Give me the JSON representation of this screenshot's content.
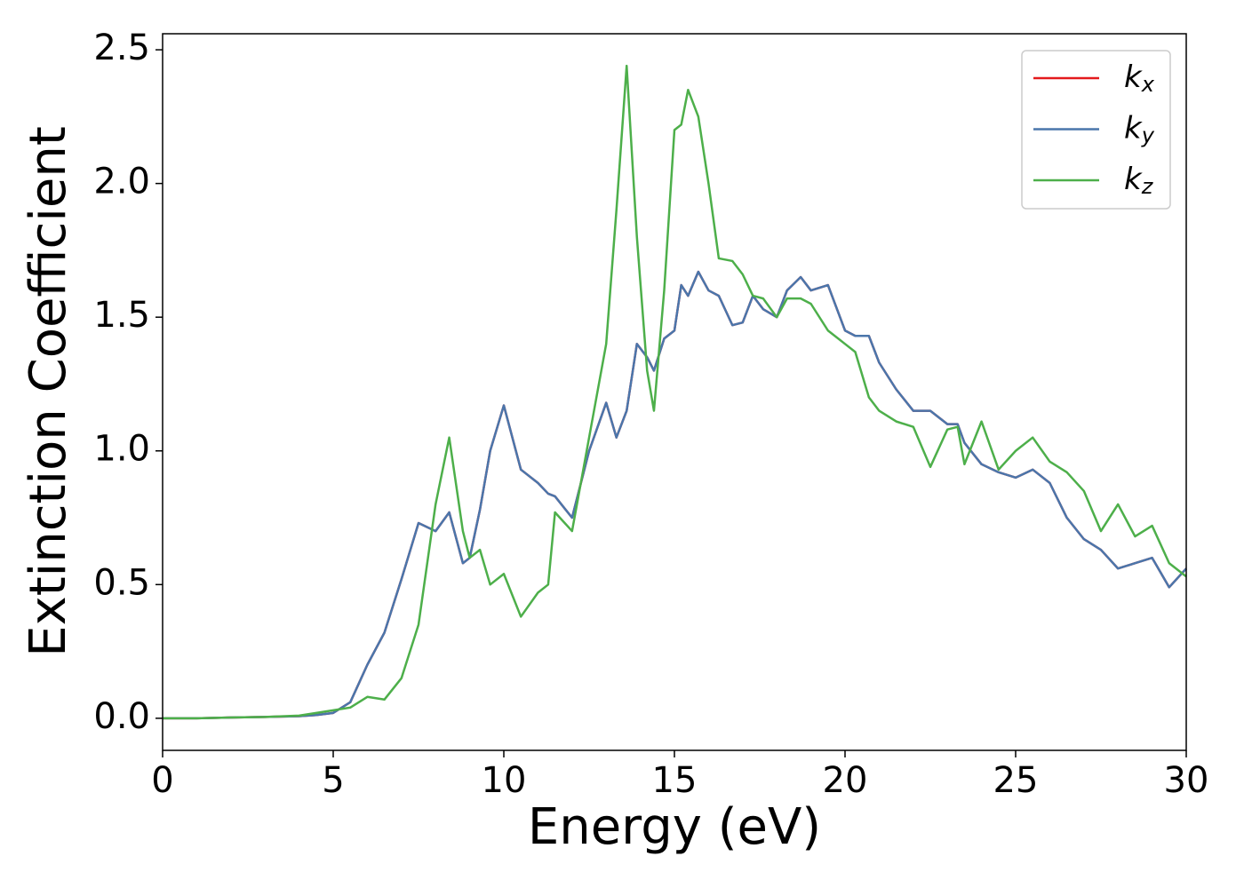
{
  "chart_data": {
    "type": "line",
    "xlabel": "Energy (eV)",
    "ylabel": "Extinction Coefficient",
    "x": [
      0,
      1,
      2,
      3,
      4,
      4.5,
      5,
      5.5,
      6,
      6.5,
      7,
      7.5,
      8,
      8.4,
      8.8,
      9,
      9.3,
      9.6,
      10,
      10.5,
      11,
      11.3,
      11.5,
      12,
      12.5,
      13,
      13.3,
      13.6,
      13.9,
      14.2,
      14.4,
      14.7,
      15,
      15.2,
      15.4,
      15.7,
      16,
      16.3,
      16.7,
      17,
      17.3,
      17.6,
      18,
      18.3,
      18.7,
      19,
      19.5,
      20,
      20.3,
      20.7,
      21,
      21.5,
      22,
      22.5,
      23,
      23.3,
      23.5,
      24,
      24.5,
      25,
      25.5,
      26,
      26.5,
      27,
      27.5,
      28,
      28.5,
      29,
      29.5,
      30
    ],
    "series": [
      {
        "name": "kx",
        "color": "#e41a1c",
        "values": [
          0,
          0,
          0.003,
          0.005,
          0.008,
          0.012,
          0.02,
          0.06,
          0.2,
          0.32,
          0.52,
          0.73,
          0.7,
          0.77,
          0.58,
          0.6,
          0.78,
          1.0,
          1.17,
          0.93,
          0.88,
          0.84,
          0.83,
          0.75,
          1.0,
          1.18,
          1.05,
          1.15,
          1.4,
          1.35,
          1.3,
          1.42,
          1.45,
          1.62,
          1.58,
          1.67,
          1.6,
          1.58,
          1.47,
          1.48,
          1.58,
          1.53,
          1.5,
          1.6,
          1.65,
          1.6,
          1.62,
          1.45,
          1.43,
          1.43,
          1.33,
          1.23,
          1.15,
          1.15,
          1.1,
          1.1,
          1.03,
          0.95,
          0.92,
          0.9,
          0.93,
          0.88,
          0.75,
          0.67,
          0.63,
          0.56,
          0.58,
          0.6,
          0.49,
          0.56
        ]
      },
      {
        "name": "ky",
        "color": "#4a76ab",
        "values": [
          0,
          0,
          0.003,
          0.005,
          0.008,
          0.012,
          0.02,
          0.06,
          0.2,
          0.32,
          0.52,
          0.73,
          0.7,
          0.77,
          0.58,
          0.6,
          0.78,
          1.0,
          1.17,
          0.93,
          0.88,
          0.84,
          0.83,
          0.75,
          1.0,
          1.18,
          1.05,
          1.15,
          1.4,
          1.35,
          1.3,
          1.42,
          1.45,
          1.62,
          1.58,
          1.67,
          1.6,
          1.58,
          1.47,
          1.48,
          1.58,
          1.53,
          1.5,
          1.6,
          1.65,
          1.6,
          1.62,
          1.45,
          1.43,
          1.43,
          1.33,
          1.23,
          1.15,
          1.15,
          1.1,
          1.1,
          1.03,
          0.95,
          0.92,
          0.9,
          0.93,
          0.88,
          0.75,
          0.67,
          0.63,
          0.56,
          0.58,
          0.6,
          0.49,
          0.56
        ]
      },
      {
        "name": "kz",
        "color": "#4daf4a",
        "values": [
          0,
          0,
          0.003,
          0.005,
          0.01,
          0.02,
          0.03,
          0.04,
          0.08,
          0.07,
          0.15,
          0.35,
          0.8,
          1.05,
          0.7,
          0.6,
          0.63,
          0.5,
          0.54,
          0.38,
          0.47,
          0.5,
          0.77,
          0.7,
          1.05,
          1.4,
          1.9,
          2.44,
          1.8,
          1.3,
          1.15,
          1.6,
          2.2,
          2.22,
          2.35,
          2.25,
          2.0,
          1.72,
          1.71,
          1.66,
          1.58,
          1.57,
          1.5,
          1.57,
          1.57,
          1.55,
          1.45,
          1.4,
          1.37,
          1.2,
          1.15,
          1.11,
          1.09,
          0.94,
          1.08,
          1.09,
          0.95,
          1.11,
          0.93,
          1.0,
          1.05,
          0.96,
          0.92,
          0.85,
          0.7,
          0.8,
          0.68,
          0.72,
          0.58,
          0.53
        ]
      }
    ],
    "xlim": [
      0,
      30
    ],
    "xticks": [
      0,
      5,
      10,
      15,
      20,
      25,
      30
    ],
    "ylim": [
      -0.12,
      2.56
    ],
    "yticks": [
      {
        "value": 0,
        "label": "0.0"
      },
      0.5,
      {
        "value": 1,
        "label": "1.0"
      },
      1.5,
      {
        "value": 2,
        "label": "2.0"
      },
      2.5
    ],
    "grid": false,
    "legend": "upper right"
  }
}
